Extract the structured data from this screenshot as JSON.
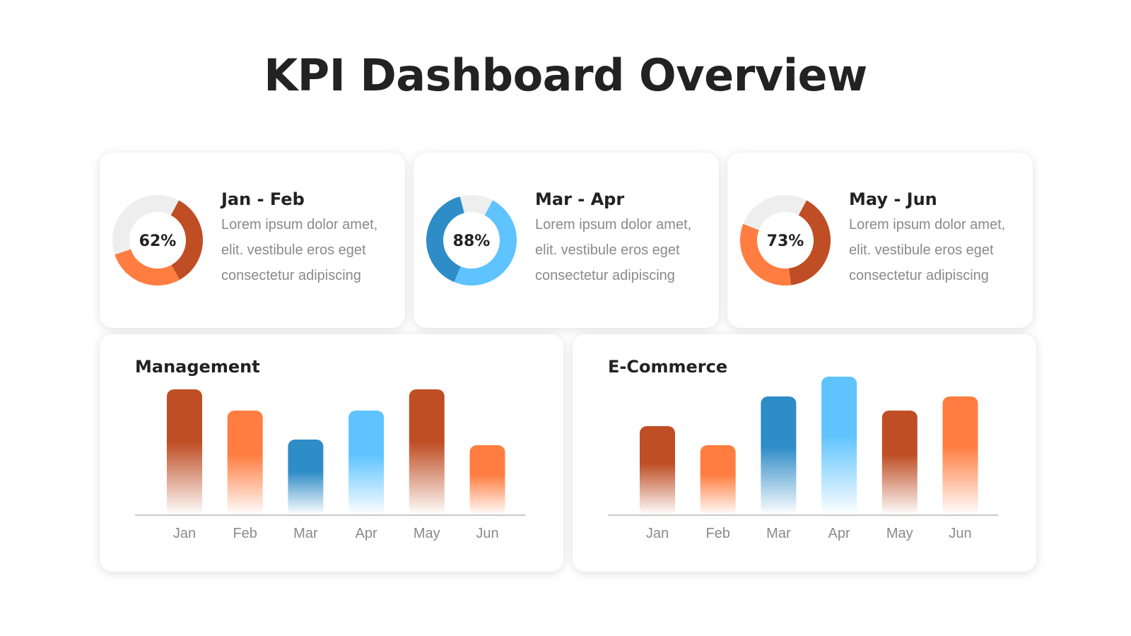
{
  "title": "KPI Dashboard Overview",
  "colors": {
    "dark_orange": "#BF4E25",
    "orange": "#FF7D40",
    "dark_blue": "#2E8CC7",
    "light_blue": "#5EC3FF",
    "track": "#EEEEEE"
  },
  "kpis": [
    {
      "period": "Jan - Feb",
      "value_label": "62%",
      "value": 62,
      "description": "Lorem ipsum dolor amet, elit. vestibule eros eget consectetur adipiscing"
    },
    {
      "period": "Mar - Apr",
      "value_label": "88%",
      "value": 88,
      "description": "Lorem ipsum dolor amet, elit. vestibule eros eget consectetur adipiscing"
    },
    {
      "period": "May - Jun",
      "value_label": "73%",
      "value": 73,
      "description": "Lorem ipsum dolor amet, elit. vestibule eros eget consectetur adipiscing"
    }
  ],
  "chart_data": [
    {
      "type": "bar",
      "title": "Management",
      "categories": [
        "Jan",
        "Feb",
        "Mar",
        "Apr",
        "May",
        "Jun"
      ],
      "values": [
        178,
        148,
        107,
        148,
        178,
        99
      ],
      "bar_colors": [
        "#BF4E25",
        "#FF7D40",
        "#2E8CC7",
        "#5EC3FF",
        "#BF4E25",
        "#FF7D40"
      ],
      "xlabel": "",
      "ylabel": "",
      "ylim": [
        0,
        200
      ],
      "grid": false
    },
    {
      "type": "bar",
      "title": "E-Commerce",
      "categories": [
        "Jan",
        "Feb",
        "Mar",
        "Apr",
        "May",
        "Jun"
      ],
      "values": [
        126,
        99,
        168,
        196,
        148,
        168
      ],
      "bar_colors": [
        "#BF4E25",
        "#FF7D40",
        "#2E8CC7",
        "#5EC3FF",
        "#BF4E25",
        "#FF7D40"
      ],
      "xlabel": "",
      "ylabel": "",
      "ylim": [
        0,
        200
      ],
      "grid": false
    }
  ]
}
